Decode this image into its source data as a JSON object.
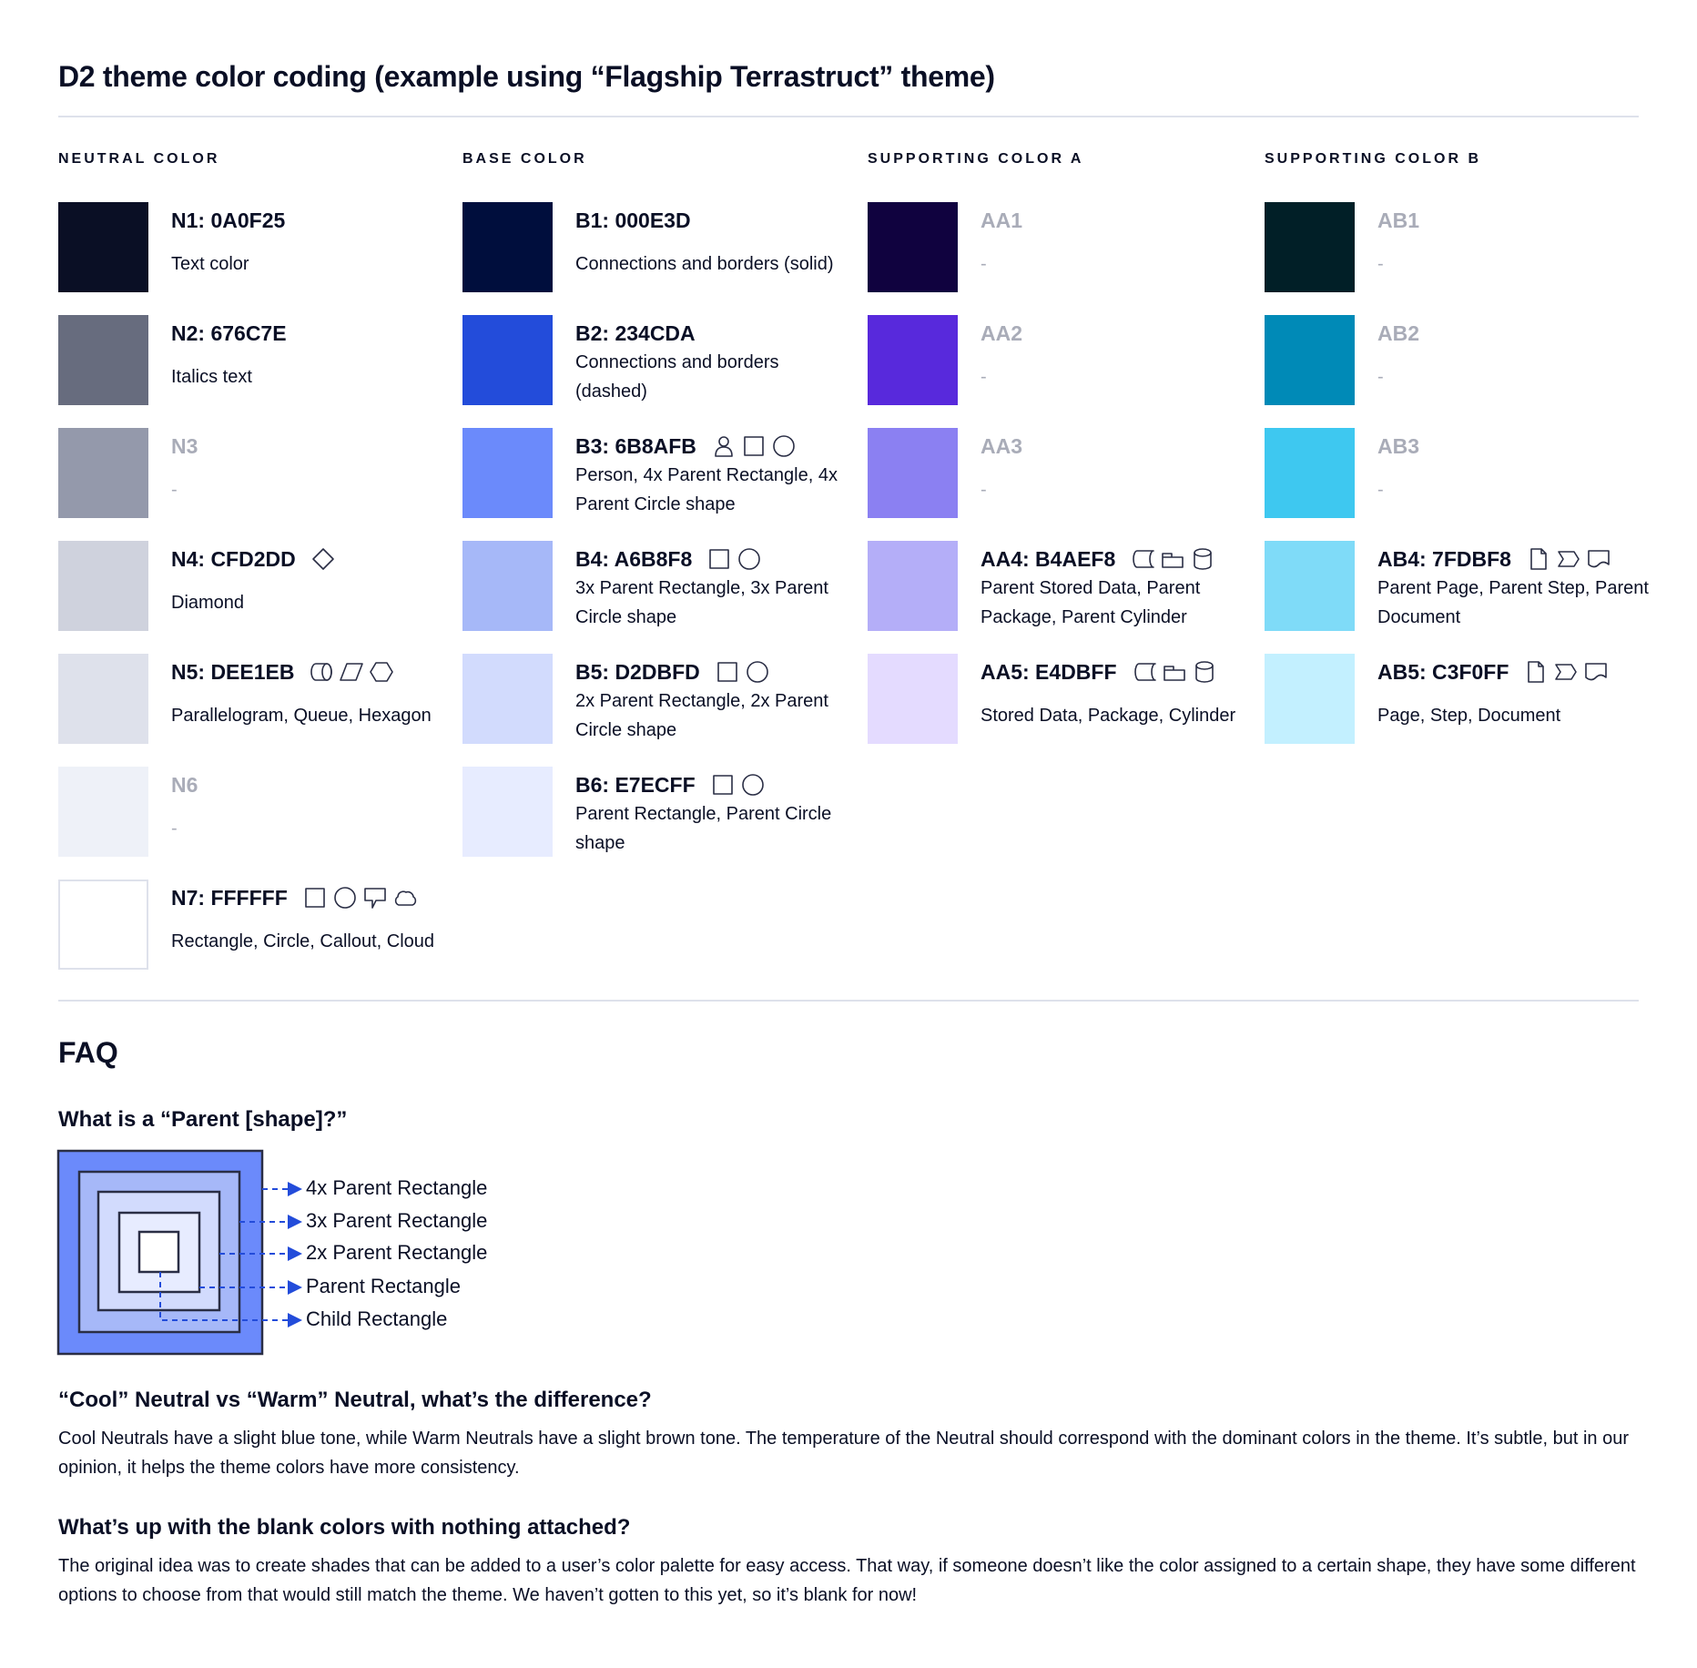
{
  "title": "D2 theme color coding (example using “Flagship Terrastruct” theme)",
  "columns": [
    {
      "heading": "NEUTRAL COLOR",
      "entries": [
        {
          "label": "N1: 0A0F25",
          "color": "#0A0F25",
          "desc": "Text color",
          "icons": []
        },
        {
          "label": "N2: 676C7E",
          "color": "#676C7E",
          "desc": "Italics text",
          "icons": []
        },
        {
          "label": "N3",
          "color": "#9499AB",
          "desc": "-",
          "icons": [],
          "muted": true
        },
        {
          "label": "N4: CFD2DD",
          "color": "#CFD2DD",
          "desc": "Diamond",
          "icons": [
            "diamond"
          ]
        },
        {
          "label": "N5: DEE1EB",
          "color": "#DEE1EB",
          "desc": "Parallelogram, Queue, Hexagon",
          "icons": [
            "queue",
            "parallelogram",
            "hexagon"
          ]
        },
        {
          "label": "N6",
          "color": "#EEF1F8",
          "desc": "-",
          "icons": [],
          "muted": true
        },
        {
          "label": "N7: FFFFFF",
          "color": "#FFFFFF",
          "desc": "Rectangle, Circle, Callout, Cloud",
          "icons": [
            "rectangle",
            "circle",
            "callout",
            "cloud"
          ]
        }
      ]
    },
    {
      "heading": "BASE COLOR",
      "entries": [
        {
          "label": "B1: 000E3D",
          "color": "#000E3D",
          "desc": "Connections and borders (solid)",
          "icons": []
        },
        {
          "label": "B2: 234CDA",
          "color": "#234CDA",
          "desc": "Connections and borders (dashed)",
          "icons": []
        },
        {
          "label": "B3: 6B8AFB",
          "color": "#6B8AFB",
          "desc": "Person, 4x Parent Rectangle, 4x Parent Circle shape",
          "icons": [
            "person",
            "rectangle",
            "circle"
          ]
        },
        {
          "label": "B4: A6B8F8",
          "color": "#A6B8F8",
          "desc": "3x Parent Rectangle, 3x Parent Circle shape",
          "icons": [
            "rectangle",
            "circle"
          ]
        },
        {
          "label": "B5: D2DBFD",
          "color": "#D2DBFD",
          "desc": "2x Parent Rectangle, 2x Parent Circle shape",
          "icons": [
            "rectangle",
            "circle"
          ]
        },
        {
          "label": "B6: E7ECFF",
          "color": "#E7ECFF",
          "desc": "Parent Rectangle, Parent Circle shape",
          "icons": [
            "rectangle",
            "circle"
          ]
        }
      ]
    },
    {
      "heading": "SUPPORTING COLOR A",
      "entries": [
        {
          "label": "AA1",
          "color": "#10023F",
          "desc": "-",
          "icons": [],
          "muted": true
        },
        {
          "label": "AA2",
          "color": "#5829DC",
          "desc": "-",
          "icons": [],
          "muted": true
        },
        {
          "label": "AA3",
          "color": "#8B80F2",
          "desc": "-",
          "icons": [],
          "muted": true
        },
        {
          "label": "AA4: B4AEF8",
          "color": "#B4AEF8",
          "desc": "Parent Stored Data, Parent Package,  Parent Cylinder",
          "icons": [
            "stored-data",
            "package",
            "cylinder"
          ]
        },
        {
          "label": "AA5: E4DBFF",
          "color": "#E4DBFF",
          "desc": "Stored Data, Package, Cylinder",
          "icons": [
            "stored-data",
            "package",
            "cylinder"
          ]
        }
      ]
    },
    {
      "heading": "SUPPORTING COLOR B",
      "entries": [
        {
          "label": "AB1",
          "color": "#011F27",
          "desc": "-",
          "icons": [],
          "muted": true
        },
        {
          "label": "AB2",
          "color": "#008AB7",
          "desc": "-",
          "icons": [],
          "muted": true
        },
        {
          "label": "AB3",
          "color": "#3EC8F0",
          "desc": "-",
          "icons": [],
          "muted": true
        },
        {
          "label": "AB4: 7FDBF8",
          "color": "#7FDBF8",
          "desc": "Parent Page, Parent Step, Parent Document",
          "icons": [
            "page",
            "step",
            "document"
          ]
        },
        {
          "label": "AB5: C3F0FF",
          "color": "#C3F0FF",
          "desc": "Page, Step, Document",
          "icons": [
            "page",
            "step",
            "document"
          ]
        }
      ]
    }
  ],
  "faq": {
    "heading": "FAQ",
    "q1": "What is a “Parent [shape]?”",
    "diagram_labels": [
      "4x Parent Rectangle",
      "3x Parent Rectangle",
      "2x Parent Rectangle",
      "Parent Rectangle",
      "Child Rectangle"
    ],
    "diagram_colors": [
      "#6B8AFB",
      "#A6B8F8",
      "#D2DBFD",
      "#E7ECFF",
      "#FFFFFF"
    ],
    "arrow_color": "#234CDA",
    "q2": "“Cool” Neutral vs “Warm” Neutral, what’s the difference?",
    "a2": "Cool Neutrals have a slight blue tone, while Warm Neutrals have a slight brown tone. The temperature of the Neutral should correspond with the dominant colors in the theme. It’s subtle, but in our opinion, it helps the theme colors have more consistency.",
    "q3": "What’s up with the blank colors with nothing attached?",
    "a3": "The original idea was to create shades that can be added to a user’s color palette for easy access. That way, if someone doesn’t like the color assigned to a certain shape, they have some different options to choose from that would still match the theme. We haven’t gotten to this yet, so it’s blank for now!"
  }
}
